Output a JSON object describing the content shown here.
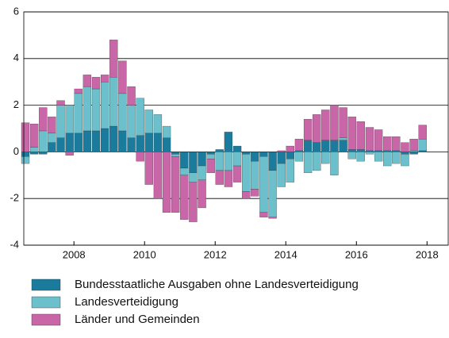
{
  "chart_data": {
    "type": "bar",
    "stacked": true,
    "x": [
      2006.625,
      2006.875,
      2007.125,
      2007.375,
      2007.625,
      2007.875,
      2008.125,
      2008.375,
      2008.625,
      2008.875,
      2009.125,
      2009.375,
      2009.625,
      2009.875,
      2010.125,
      2010.375,
      2010.625,
      2010.875,
      2011.125,
      2011.375,
      2011.625,
      2011.875,
      2012.125,
      2012.375,
      2012.625,
      2012.875,
      2013.125,
      2013.375,
      2013.625,
      2013.875,
      2014.125,
      2014.375,
      2014.625,
      2014.875,
      2015.125,
      2015.375,
      2015.625,
      2015.875,
      2016.125,
      2016.375,
      2016.625,
      2016.875,
      2017.125,
      2017.375,
      2017.625,
      2017.875
    ],
    "series": [
      {
        "name": "Bundesstaatliche Ausgaben ohne Landesverteidigung",
        "color": "#1a7b9c",
        "values": [
          -0.2,
          -0.1,
          -0.1,
          0.4,
          0.6,
          0.8,
          0.8,
          0.9,
          0.9,
          1.0,
          1.1,
          0.9,
          0.6,
          0.7,
          0.8,
          0.8,
          0.6,
          -0.1,
          -0.7,
          -0.9,
          -0.6,
          -0.1,
          0.1,
          0.85,
          0.25,
          -0.1,
          -0.4,
          -0.2,
          -0.8,
          -0.5,
          -0.3,
          0.05,
          0.5,
          0.4,
          0.5,
          0.5,
          0.5,
          0.1,
          0.1,
          0.05,
          0.05,
          0.05,
          0.05,
          -0.1,
          -0.1,
          0.05
        ]
      },
      {
        "name": "Landesverteidigung",
        "color": "#6cc0cc",
        "values": [
          -0.3,
          0.2,
          0.9,
          0.4,
          1.4,
          1.2,
          1.7,
          1.9,
          1.8,
          2.0,
          2.1,
          1.6,
          1.4,
          1.6,
          1.0,
          0.8,
          0.5,
          -0.1,
          -0.3,
          -0.4,
          -0.6,
          -0.2,
          -0.8,
          -0.8,
          -0.6,
          -1.6,
          -1.2,
          -2.4,
          -2.0,
          -1.0,
          -1.0,
          -0.4,
          -0.9,
          -0.8,
          -0.5,
          -1.0,
          0.1,
          -0.3,
          -0.4,
          -0.1,
          -0.4,
          -0.6,
          -0.5,
          -0.5,
          0.05,
          0.5
        ]
      },
      {
        "name": "Länder und Gemeinden",
        "color": "#c966a8",
        "values": [
          1.25,
          1.0,
          1.0,
          0.7,
          0.2,
          -0.15,
          0.2,
          0.5,
          0.5,
          0.3,
          1.6,
          1.4,
          0.8,
          -0.4,
          -1.4,
          -2.0,
          -2.6,
          -2.4,
          -1.9,
          -1.7,
          -1.2,
          -0.6,
          -0.6,
          -0.7,
          -0.7,
          -0.3,
          -0.3,
          -0.2,
          -0.05,
          0.05,
          0.25,
          0.5,
          0.9,
          1.2,
          1.3,
          1.5,
          1.3,
          1.4,
          1.2,
          1.0,
          0.9,
          0.6,
          0.6,
          0.4,
          0.5,
          0.6
        ]
      }
    ],
    "xlim": [
      2006.58,
      2018.6
    ],
    "xticks": [
      2008,
      2010,
      2012,
      2014,
      2016,
      2018
    ],
    "ylim": [
      -4,
      6
    ],
    "yticks": [
      -4,
      -2,
      0,
      2,
      4,
      6
    ],
    "grid": true
  }
}
